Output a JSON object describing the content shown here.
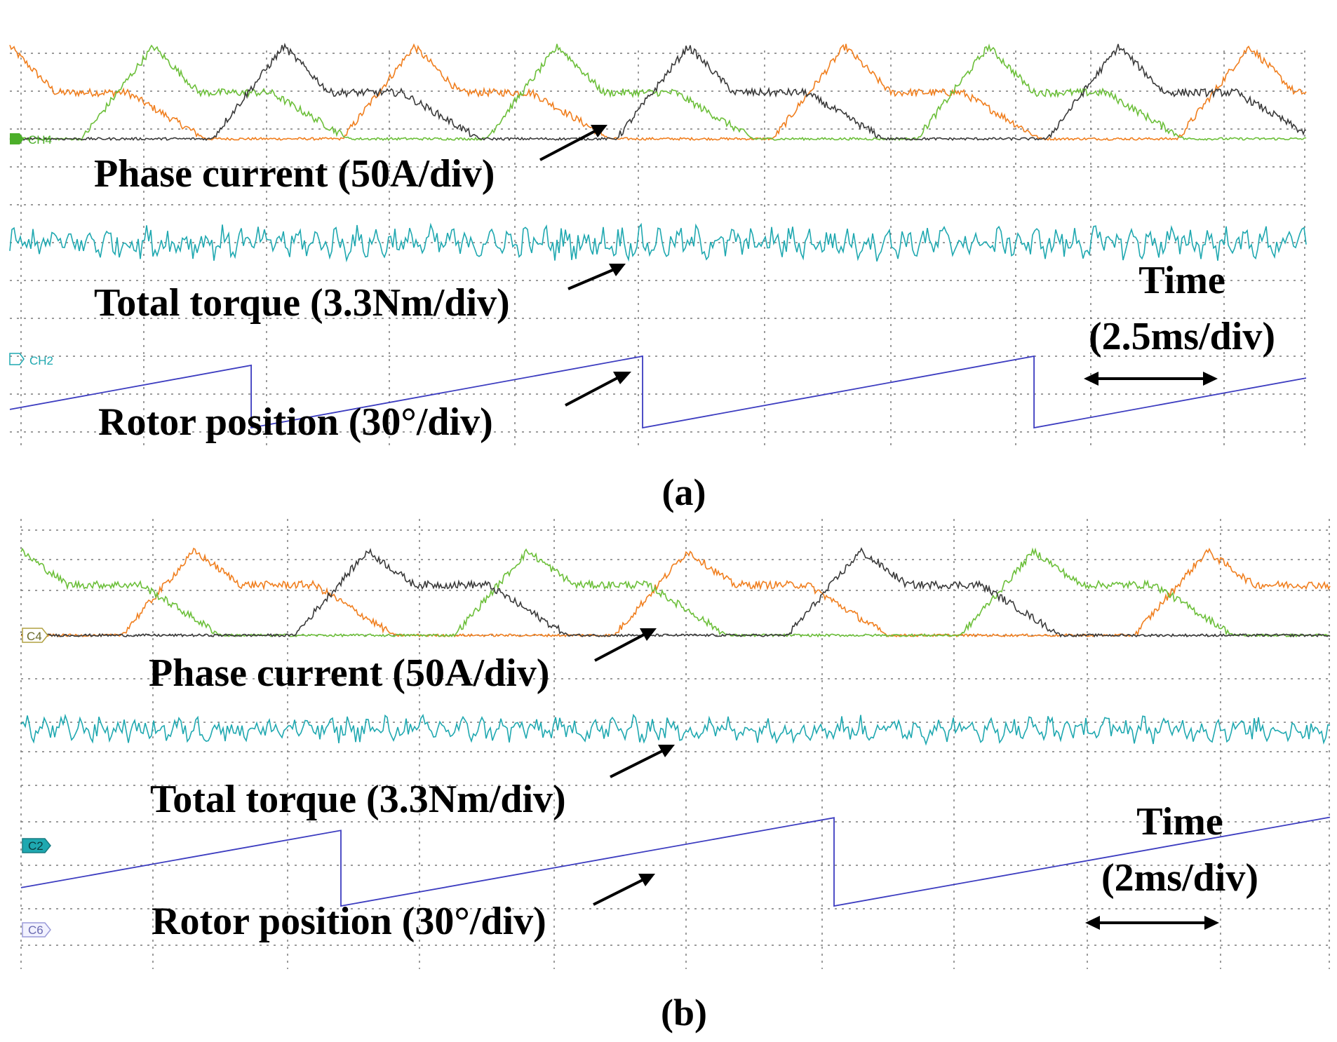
{
  "chart_data": [
    {
      "type": "line",
      "panel_label": "(a)",
      "channel_markers": {
        "current": "CH4",
        "torque": "",
        "position": "CH2"
      },
      "x": {
        "unit": "ms",
        "per_div": 2.5,
        "divisions": 10
      },
      "labels": {
        "phase_current": "Phase current (50A/div)",
        "total_torque": "Total torque (3.3Nm/div)",
        "rotor_position": "Rotor position (30°/div)",
        "time_title": "Time",
        "time_scale": "(2.5ms/div)"
      },
      "series": [
        {
          "name": "phase current A",
          "color": "#f07f1f",
          "peak_times_div": [
            0.0,
            3.1,
            6.4,
            9.5
          ],
          "peak_div": 1.1,
          "mid_div": 0.55
        },
        {
          "name": "phase current B",
          "color": "#6cbf3a",
          "peak_times_div": [
            1.1,
            4.2,
            7.5
          ],
          "peak_div": 1.1,
          "mid_div": 0.55
        },
        {
          "name": "phase current C",
          "color": "#3a3a3a",
          "peak_times_div": [
            2.1,
            5.2,
            8.5
          ],
          "peak_div": 1.1,
          "mid_div": 0.55
        },
        {
          "name": "total torque",
          "color": "#1fa8b0",
          "mean_div": 0.0,
          "ripple_div": 0.28
        },
        {
          "name": "rotor position",
          "color": "#3c3cc0",
          "reset_times_div": [
            1.85,
            4.85,
            7.85
          ],
          "rise_div_per_div": 0.33
        }
      ]
    },
    {
      "type": "line",
      "panel_label": "(b)",
      "channel_markers": {
        "current": "C4",
        "torque": "C2",
        "position": "C6"
      },
      "x": {
        "unit": "ms",
        "per_div": 2,
        "divisions": 10
      },
      "labels": {
        "phase_current": "Phase current (50A/div)",
        "total_torque": "Total torque (3.3Nm/div)",
        "rotor_position": "Rotor position (30°/div)",
        "time_title": "Time",
        "time_scale": "(2ms/div)"
      },
      "series": [
        {
          "name": "phase current A",
          "color": "#f07f1f",
          "peak_times_div": [
            1.3,
            5.0,
            8.9
          ],
          "peak_div": 1.0,
          "mid_div": 0.6
        },
        {
          "name": "phase current B",
          "color": "#6cbf3a",
          "peak_times_div": [
            0.0,
            3.8,
            7.6
          ],
          "peak_div": 1.0,
          "mid_div": 0.6
        },
        {
          "name": "phase current C",
          "color": "#3a3a3a",
          "peak_times_div": [
            2.6,
            6.3
          ],
          "peak_div": 1.0,
          "mid_div": 0.6
        },
        {
          "name": "total torque",
          "color": "#1fa8b0",
          "mean_div": 0.0,
          "ripple_div": 0.22
        },
        {
          "name": "rotor position",
          "color": "#3c3cc0",
          "reset_times_div": [
            2.4,
            6.1
          ],
          "rise_div_per_div": 0.27
        }
      ]
    }
  ]
}
